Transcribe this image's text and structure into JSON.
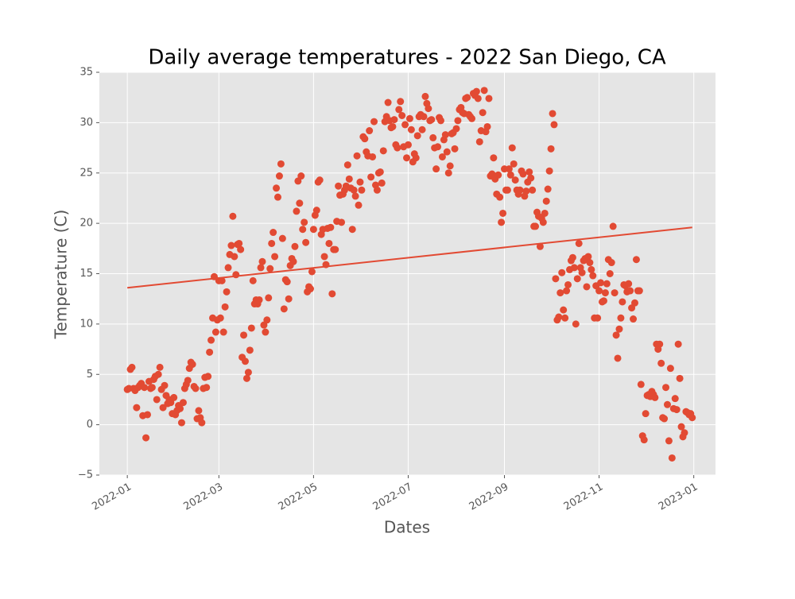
{
  "chart_data": {
    "type": "scatter",
    "title": "Daily average temperatures - 2022 San Diego, CA",
    "x_label": "Dates",
    "y_label": "Temperature (C)",
    "color": "#E24A33",
    "grid": true,
    "xlim": [
      -18,
      379
    ],
    "ylim": [
      -5,
      35
    ],
    "xticks": [
      {
        "value": 0,
        "label": "2022-01"
      },
      {
        "value": 59,
        "label": "2022-03"
      },
      {
        "value": 120,
        "label": "2022-05"
      },
      {
        "value": 181,
        "label": "2022-07"
      },
      {
        "value": 243,
        "label": "2022-09"
      },
      {
        "value": 304,
        "label": "2022-11"
      },
      {
        "value": 365,
        "label": "2023-01"
      }
    ],
    "yticks": [
      {
        "value": -5,
        "label": "−5"
      },
      0,
      5,
      10,
      15,
      20,
      25,
      30,
      35
    ],
    "x": [
      0,
      1,
      2,
      3,
      4,
      5,
      6,
      7,
      8,
      9,
      10,
      11,
      12,
      13,
      14,
      15,
      16,
      17,
      18,
      19,
      20,
      21,
      22,
      23,
      24,
      25,
      26,
      27,
      28,
      29,
      30,
      31,
      32,
      33,
      34,
      35,
      36,
      37,
      38,
      39,
      40,
      41,
      42,
      43,
      44,
      45,
      46,
      47,
      48,
      49,
      50,
      51,
      52,
      53,
      54,
      55,
      56,
      57,
      58,
      59,
      60,
      61,
      62,
      63,
      64,
      65,
      66,
      67,
      68,
      69,
      70,
      71,
      72,
      73,
      74,
      75,
      76,
      77,
      78,
      79,
      80,
      81,
      82,
      83,
      84,
      85,
      86,
      87,
      88,
      89,
      90,
      91,
      92,
      93,
      94,
      95,
      96,
      97,
      98,
      99,
      100,
      101,
      102,
      103,
      104,
      105,
      106,
      107,
      108,
      109,
      110,
      111,
      112,
      113,
      114,
      115,
      116,
      117,
      118,
      119,
      120,
      121,
      122,
      123,
      124,
      125,
      126,
      127,
      128,
      129,
      130,
      131,
      132,
      133,
      134,
      135,
      136,
      137,
      138,
      139,
      140,
      141,
      142,
      143,
      144,
      145,
      146,
      147,
      148,
      149,
      150,
      151,
      152,
      153,
      154,
      155,
      156,
      157,
      158,
      159,
      160,
      161,
      162,
      163,
      164,
      165,
      166,
      167,
      168,
      169,
      170,
      171,
      172,
      173,
      174,
      175,
      176,
      177,
      178,
      179,
      180,
      181,
      182,
      183,
      184,
      185,
      186,
      187,
      188,
      189,
      190,
      191,
      192,
      193,
      194,
      195,
      196,
      197,
      198,
      199,
      200,
      201,
      202,
      203,
      204,
      205,
      206,
      207,
      208,
      209,
      210,
      211,
      212,
      213,
      214,
      215,
      216,
      217,
      218,
      219,
      220,
      221,
      222,
      223,
      224,
      225,
      226,
      227,
      228,
      229,
      230,
      231,
      232,
      233,
      234,
      235,
      236,
      237,
      238,
      239,
      240,
      241,
      242,
      243,
      244,
      245,
      246,
      247,
      248,
      249,
      250,
      251,
      252,
      253,
      254,
      255,
      256,
      257,
      258,
      259,
      260,
      261,
      262,
      263,
      264,
      265,
      266,
      267,
      268,
      269,
      270,
      271,
      272,
      273,
      274,
      275,
      276,
      277,
      278,
      279,
      280,
      281,
      282,
      283,
      284,
      285,
      286,
      287,
      288,
      289,
      290,
      291,
      292,
      293,
      294,
      295,
      296,
      297,
      298,
      299,
      300,
      301,
      302,
      303,
      304,
      305,
      306,
      307,
      308,
      309,
      310,
      311,
      312,
      313,
      314,
      315,
      316,
      317,
      318,
      319,
      320,
      321,
      322,
      323,
      324,
      325,
      326,
      327,
      328,
      329,
      330,
      331,
      332,
      333,
      334,
      335,
      336,
      337,
      338,
      339,
      340,
      341,
      342,
      343,
      344,
      345,
      346,
      347,
      348,
      349,
      350,
      351,
      352,
      353,
      354,
      355,
      356,
      357,
      358,
      359,
      360,
      361,
      362,
      363,
      364
    ],
    "values": [
      3.5,
      3.6,
      5.5,
      5.7,
      3.6,
      3.4,
      1.7,
      3.7,
      3.9,
      4.1,
      0.9,
      3.7,
      -1.3,
      1.0,
      4.3,
      3.6,
      3.7,
      4.5,
      4.8,
      2.5,
      5.0,
      5.7,
      3.5,
      1.7,
      3.9,
      2.9,
      2.1,
      2.5,
      2.2,
      1.1,
      2.7,
      1.0,
      1.4,
      1.9,
      1.6,
      0.2,
      2.2,
      3.6,
      4.0,
      4.4,
      5.6,
      6.2,
      6.0,
      3.8,
      3.6,
      0.6,
      1.4,
      0.7,
      0.2,
      3.6,
      4.7,
      3.7,
      4.8,
      7.2,
      8.4,
      10.6,
      14.7,
      9.2,
      10.4,
      14.3,
      10.6,
      14.3,
      9.2,
      11.7,
      13.2,
      15.6,
      16.9,
      17.8,
      20.7,
      16.7,
      14.9,
      17.9,
      18.0,
      17.4,
      6.7,
      8.9,
      6.3,
      4.6,
      5.2,
      7.4,
      9.6,
      14.3,
      12.0,
      12.4,
      12.0,
      12.4,
      15.6,
      16.2,
      9.9,
      9.2,
      10.4,
      12.6,
      15.5,
      18.0,
      19.1,
      16.7,
      23.5,
      22.6,
      24.7,
      25.9,
      18.5,
      11.5,
      14.4,
      14.2,
      12.5,
      15.8,
      16.5,
      16.2,
      17.7,
      21.2,
      24.2,
      22.0,
      24.7,
      19.4,
      20.1,
      18.1,
      13.2,
      13.7,
      13.5,
      15.2,
      19.4,
      20.8,
      21.3,
      24.1,
      24.3,
      18.9,
      19.4,
      16.7,
      15.9,
      19.5,
      18.0,
      19.6,
      13.0,
      17.4,
      17.4,
      20.2,
      23.7,
      22.8,
      20.1,
      22.9,
      23.3,
      23.7,
      25.8,
      24.4,
      23.5,
      19.4,
      23.3,
      22.7,
      26.7,
      21.8,
      24.1,
      23.3,
      28.6,
      28.4,
      27.1,
      26.7,
      29.2,
      24.6,
      26.6,
      30.1,
      23.8,
      23.3,
      25.0,
      25.1,
      24.0,
      27.2,
      30.1,
      30.6,
      32.0,
      30.2,
      29.5,
      29.6,
      30.3,
      27.8,
      27.5,
      31.3,
      32.1,
      30.7,
      27.6,
      29.8,
      26.5,
      27.8,
      30.4,
      29.3,
      26.1,
      26.9,
      26.5,
      28.7,
      30.6,
      30.8,
      29.3,
      30.6,
      32.6,
      31.9,
      31.4,
      30.2,
      30.3,
      28.5,
      27.5,
      25.4,
      27.6,
      30.5,
      30.2,
      26.6,
      28.3,
      28.8,
      27.1,
      25.0,
      25.7,
      28.9,
      29.0,
      27.4,
      29.4,
      30.2,
      31.3,
      31.5,
      31.0,
      30.9,
      32.4,
      32.5,
      30.8,
      30.6,
      30.4,
      32.9,
      32.7,
      33.1,
      32.4,
      28.1,
      29.2,
      31.0,
      33.2,
      29.1,
      29.6,
      32.4,
      24.7,
      24.9,
      26.5,
      24.4,
      22.9,
      24.8,
      22.6,
      20.1,
      21.0,
      25.4,
      23.3,
      23.3,
      25.4,
      24.8,
      27.5,
      25.9,
      24.3,
      23.3,
      22.9,
      23.3,
      25.2,
      24.9,
      22.7,
      23.2,
      24.1,
      25.1,
      24.5,
      23.3,
      19.7,
      19.7,
      21.1,
      20.7,
      17.7,
      20.5,
      20.1,
      21.0,
      22.2,
      23.4,
      25.2,
      27.4,
      30.9,
      29.8,
      14.5,
      10.4,
      10.7,
      13.1,
      15.1,
      11.4,
      10.6,
      13.3,
      13.9,
      15.4,
      16.3,
      16.6,
      15.6,
      10.0,
      14.5,
      18.0,
      15.6,
      15.1,
      16.3,
      16.5,
      13.7,
      16.7,
      16.1,
      15.4,
      14.8,
      10.6,
      13.8,
      10.6,
      13.3,
      14.1,
      12.2,
      12.3,
      13.1,
      14.0,
      16.4,
      15.0,
      16.1,
      19.7,
      13.1,
      8.9,
      6.6,
      9.5,
      10.6,
      12.2,
      13.9,
      13.8,
      13.2,
      14.0,
      13.3,
      11.6,
      10.5,
      12.1,
      16.4,
      13.3,
      13.3,
      4.0,
      -1.1,
      -1.5,
      1.1,
      2.9,
      3.0,
      2.8,
      3.3,
      3.0,
      2.7,
      8.0,
      7.5,
      8.0,
      6.1,
      0.7,
      0.6,
      3.7,
      2.0,
      -1.6,
      5.6,
      -3.3,
      1.6,
      2.6,
      1.5,
      8.0,
      4.6,
      -0.2,
      -1.2,
      -0.8,
      1.3,
      1.2,
      1.0,
      1.1,
      0.7
    ],
    "trend": {
      "x": [
        0,
        364
      ],
      "values": [
        13.6,
        19.6
      ],
      "color": "#E24A33"
    }
  }
}
